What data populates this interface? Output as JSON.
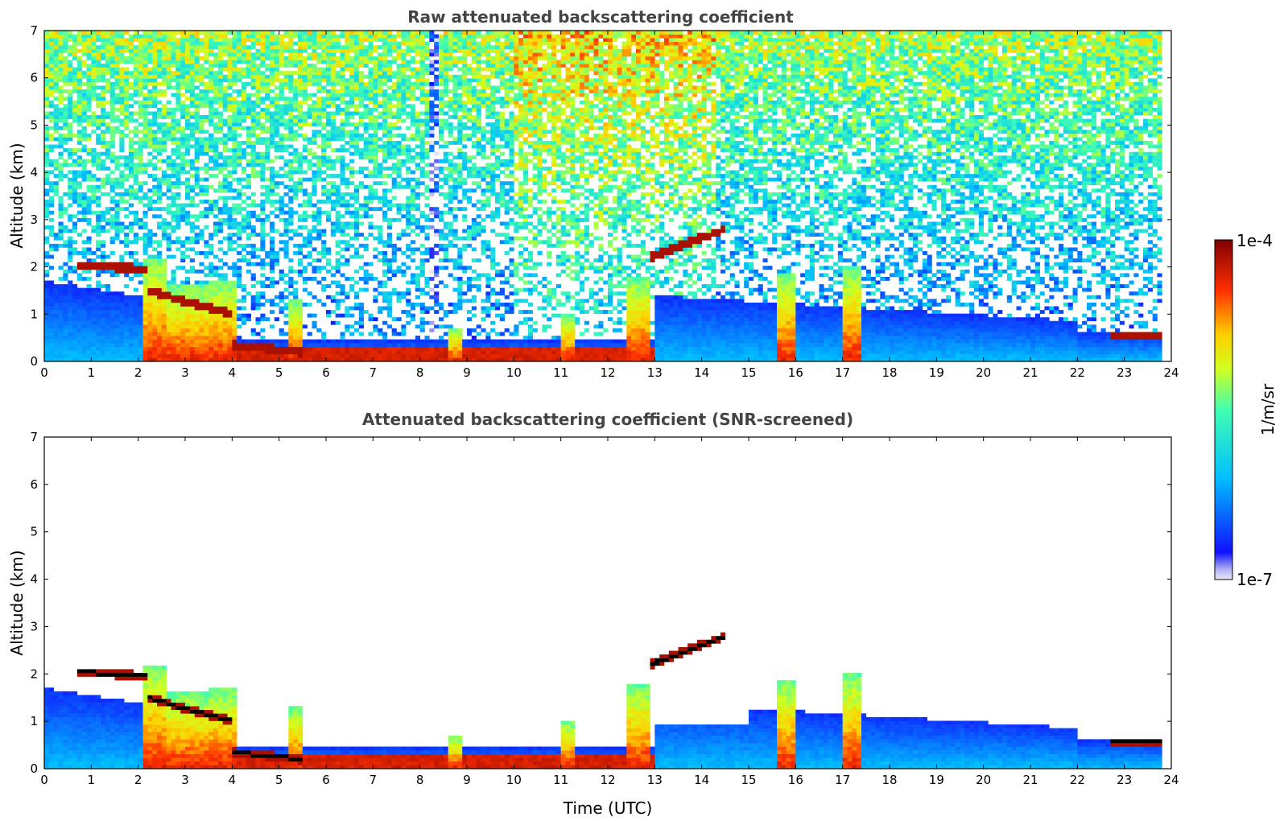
{
  "chart_data": [
    {
      "type": "heatmap",
      "title": "Raw attenuated backscattering coefficient",
      "xlabel": "",
      "ylabel": "Altitude (km)",
      "xlim": [
        0,
        24
      ],
      "ylim": [
        0,
        7
      ],
      "x_ticks": [
        "0",
        "1",
        "2",
        "3",
        "4",
        "5",
        "6",
        "7",
        "8",
        "9",
        "10",
        "11",
        "12",
        "13",
        "14",
        "15",
        "16",
        "17",
        "18",
        "19",
        "20",
        "21",
        "22",
        "23",
        "24"
      ],
      "y_ticks": [
        "0",
        "1",
        "2",
        "3",
        "4",
        "5",
        "6",
        "7"
      ],
      "screened": false
    },
    {
      "type": "heatmap",
      "title": "Attenuated backscattering coefficient (SNR-screened)",
      "xlabel": "Time (UTC)",
      "ylabel": "Altitude (km)",
      "xlim": [
        0,
        24
      ],
      "ylim": [
        0,
        7
      ],
      "x_ticks": [
        "0",
        "1",
        "2",
        "3",
        "4",
        "5",
        "6",
        "7",
        "8",
        "9",
        "10",
        "11",
        "12",
        "13",
        "14",
        "15",
        "16",
        "17",
        "18",
        "19",
        "20",
        "21",
        "22",
        "23",
        "24"
      ],
      "y_ticks": [
        "0",
        "1",
        "2",
        "3",
        "4",
        "5",
        "6",
        "7"
      ],
      "screened": true
    }
  ],
  "colorbar": {
    "label": "1/m/sr",
    "max_label": "1e-4",
    "min_label": "1e-7",
    "colormap": "jet",
    "scale": "log",
    "range": [
      1e-07,
      0.0001
    ]
  },
  "features": {
    "cloud_layers": [
      {
        "t0": 0.7,
        "t1": 2.2,
        "h0": 2.05,
        "h1": 1.95
      },
      {
        "t0": 2.2,
        "t1": 4.0,
        "h0": 1.5,
        "h1": 1.0
      },
      {
        "t0": 4.0,
        "t1": 5.5,
        "h0": 0.35,
        "h1": 0.2
      },
      {
        "t0": 12.9,
        "t1": 14.5,
        "h0": 2.2,
        "h1": 2.8
      },
      {
        "t0": 22.7,
        "t1": 23.8,
        "h0": 0.55,
        "h1": 0.55
      }
    ],
    "aerosol_columns": [
      {
        "t0": 2.1,
        "t1": 2.6,
        "top": 2.2
      },
      {
        "t0": 2.6,
        "t1": 3.5,
        "top": 1.6
      },
      {
        "t0": 3.5,
        "t1": 4.1,
        "top": 1.7
      },
      {
        "t0": 5.2,
        "t1": 5.5,
        "top": 1.3
      },
      {
        "t0": 8.6,
        "t1": 8.9,
        "top": 0.7
      },
      {
        "t0": 11.0,
        "t1": 11.3,
        "top": 1.0
      },
      {
        "t0": 12.4,
        "t1": 12.9,
        "top": 1.8
      },
      {
        "t0": 15.6,
        "t1": 16.0,
        "top": 1.9
      },
      {
        "t0": 17.0,
        "t1": 17.4,
        "top": 2.0
      }
    ]
  }
}
